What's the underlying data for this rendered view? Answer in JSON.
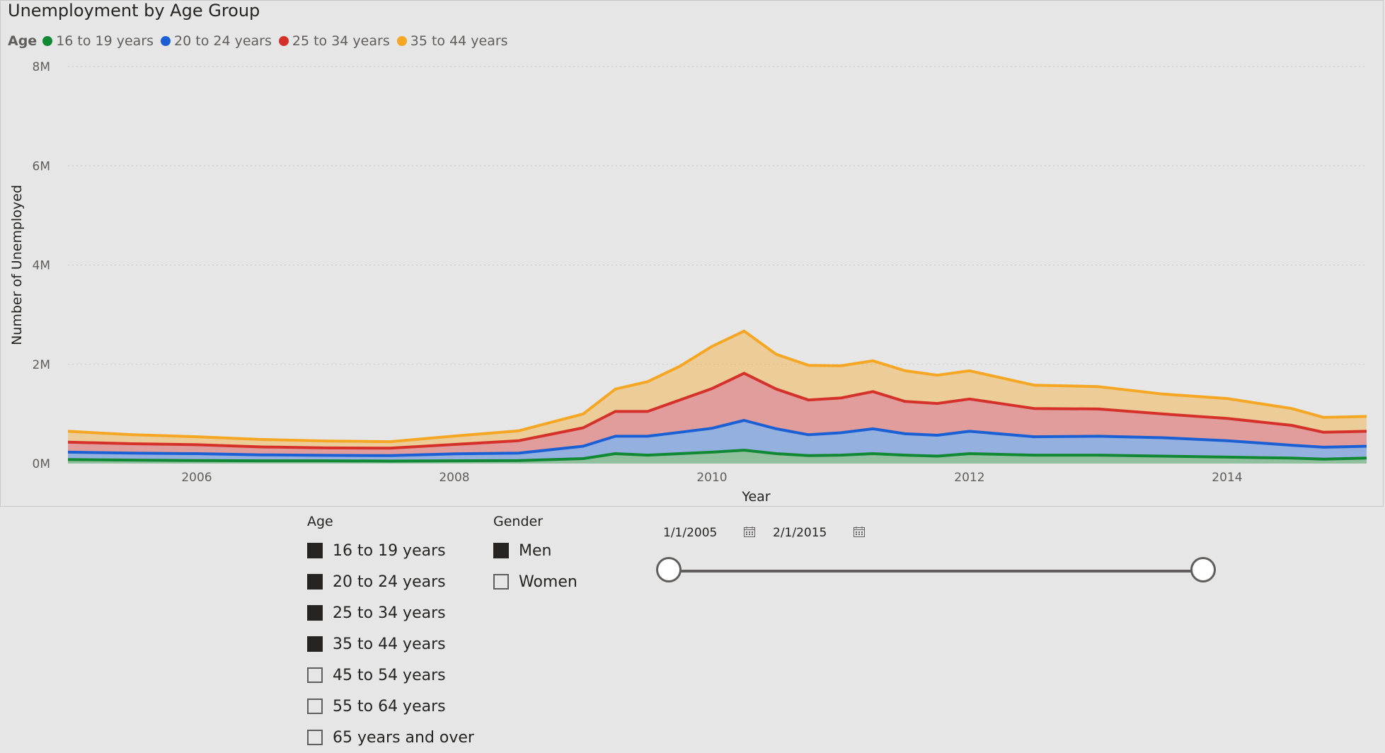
{
  "chart": {
    "title": "Unemployment by Age Group",
    "legend_title": "Age",
    "xlabel": "Year",
    "ylabel": "Number of Unemployed"
  },
  "chart_data": {
    "type": "area",
    "stacked": true,
    "title": "Unemployment by Age Group",
    "xlabel": "Year",
    "ylabel": "Number of Unemployed",
    "ylim": [
      0,
      8000000
    ],
    "xlim": [
      2005.0,
      2015.083
    ],
    "y_ticks": [
      "0M",
      "2M",
      "4M",
      "6M",
      "8M"
    ],
    "x_ticks": [
      "2006",
      "2008",
      "2010",
      "2012",
      "2014"
    ],
    "grid": true,
    "legend_position": "top-left",
    "x": [
      2005.0,
      2005.5,
      2006.0,
      2006.5,
      2007.0,
      2007.5,
      2008.0,
      2008.5,
      2009.0,
      2009.25,
      2009.5,
      2009.75,
      2010.0,
      2010.25,
      2010.5,
      2010.75,
      2011.0,
      2011.25,
      2011.5,
      2011.75,
      2012.0,
      2012.5,
      2013.0,
      2013.5,
      2014.0,
      2014.5,
      2014.75,
      2015.083
    ],
    "series": [
      {
        "name": "16 to 19 years",
        "color": "#118833",
        "values": [
          80000,
          70000,
          60000,
          55000,
          55000,
          50000,
          55000,
          60000,
          100000,
          200000,
          170000,
          200000,
          230000,
          270000,
          200000,
          160000,
          170000,
          200000,
          170000,
          150000,
          200000,
          170000,
          170000,
          150000,
          130000,
          110000,
          90000,
          110000
        ]
      },
      {
        "name": "20 to 24 years",
        "color": "#1a5fd4",
        "values": [
          150000,
          140000,
          140000,
          120000,
          110000,
          110000,
          140000,
          150000,
          250000,
          350000,
          380000,
          430000,
          480000,
          600000,
          500000,
          420000,
          450000,
          500000,
          430000,
          420000,
          450000,
          370000,
          380000,
          370000,
          330000,
          260000,
          240000,
          240000
        ]
      },
      {
        "name": "25 to 34 years",
        "color": "#d6302b",
        "values": [
          200000,
          190000,
          180000,
          160000,
          150000,
          150000,
          190000,
          250000,
          370000,
          500000,
          500000,
          650000,
          800000,
          950000,
          800000,
          700000,
          700000,
          750000,
          650000,
          640000,
          650000,
          570000,
          550000,
          480000,
          450000,
          400000,
          300000,
          300000
        ]
      },
      {
        "name": "35 to 44 years",
        "color": "#f5a623",
        "values": [
          220000,
          180000,
          160000,
          150000,
          140000,
          130000,
          170000,
          200000,
          280000,
          450000,
          600000,
          680000,
          850000,
          850000,
          700000,
          700000,
          650000,
          620000,
          620000,
          570000,
          570000,
          470000,
          450000,
          400000,
          400000,
          340000,
          300000,
          300000
        ]
      }
    ]
  },
  "age_slicer": {
    "title": "Age",
    "items": [
      {
        "label": "16 to 19 years",
        "checked": true
      },
      {
        "label": "20 to 24 years",
        "checked": true
      },
      {
        "label": "25 to 34 years",
        "checked": true
      },
      {
        "label": "35 to 44 years",
        "checked": true
      },
      {
        "label": "45 to 54 years",
        "checked": false
      },
      {
        "label": "55 to 64 years",
        "checked": false
      },
      {
        "label": "65 years and over",
        "checked": false
      }
    ]
  },
  "gender_slicer": {
    "title": "Gender",
    "items": [
      {
        "label": "Men",
        "checked": true
      },
      {
        "label": "Women",
        "checked": false
      }
    ]
  },
  "date_slicer": {
    "start_date": "1/1/2005",
    "end_date": "2/1/2015",
    "start_fraction": 0,
    "end_fraction": 1
  }
}
